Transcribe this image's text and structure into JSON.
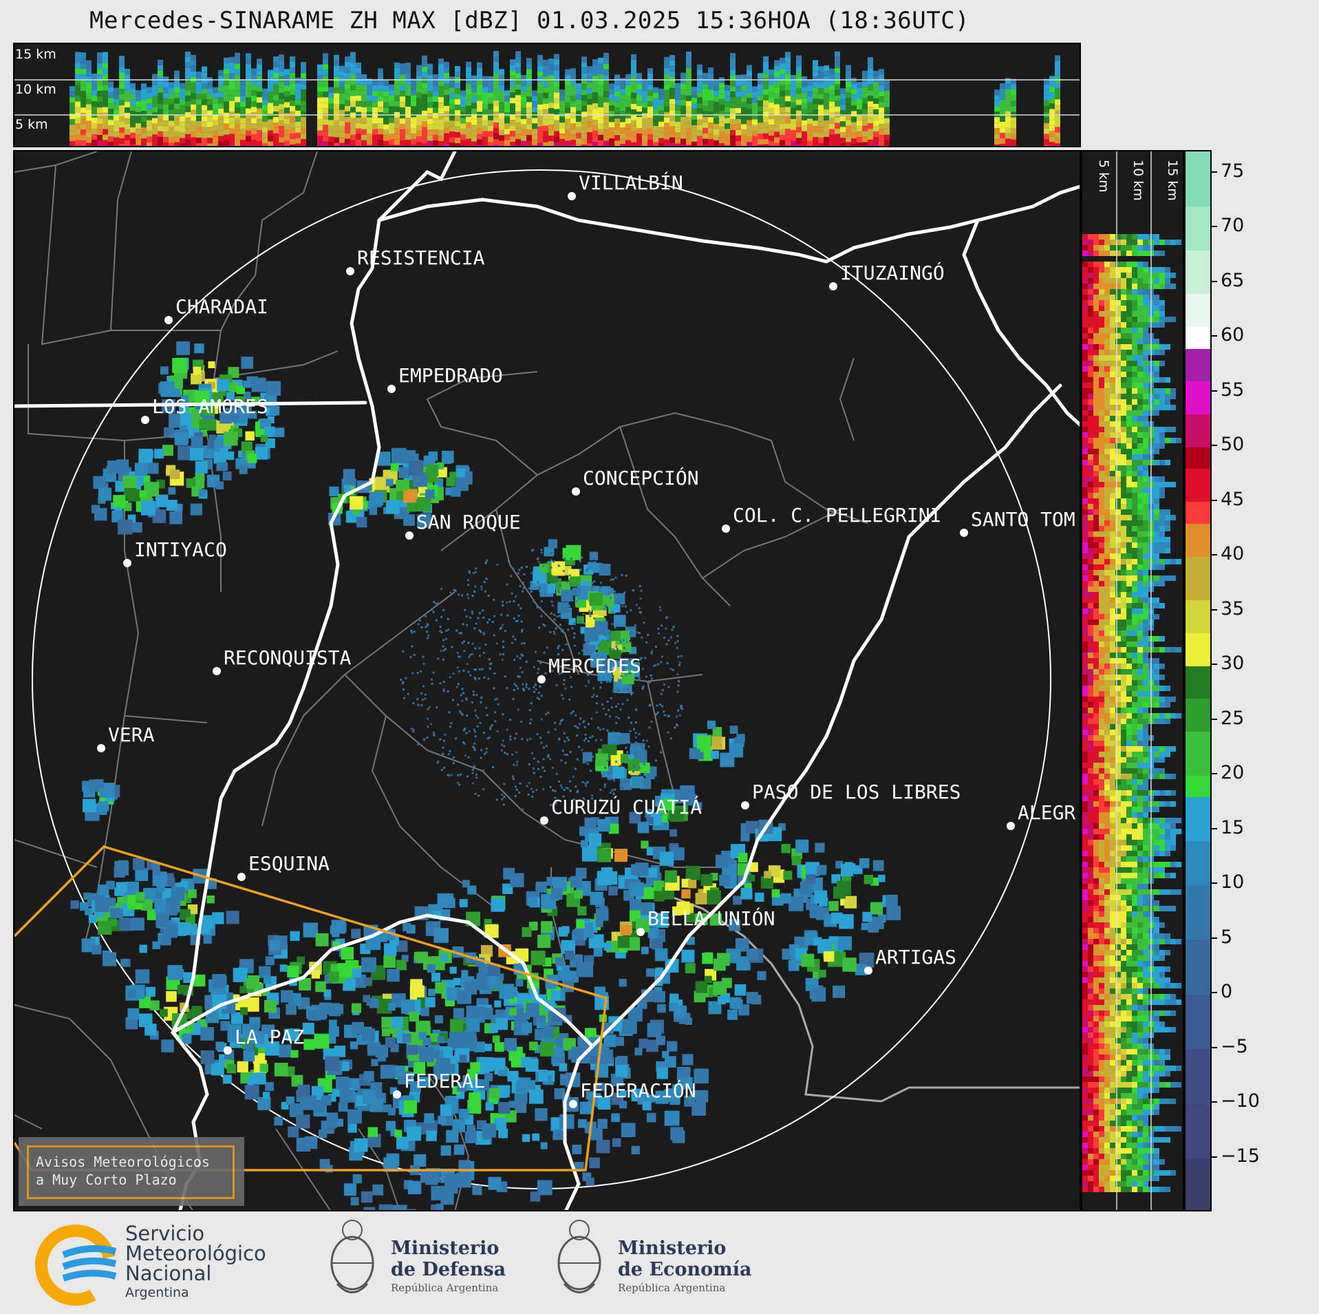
{
  "title": "Mercedes-SINARAME ZH MAX [dBZ] 01.03.2025 15:36HOA (18:36UTC)",
  "top_panel": {
    "altitude_labels": [
      "15 km",
      "10 km",
      "5 km"
    ]
  },
  "side_panel": {
    "altitude_labels": [
      "5 km",
      "10 km",
      "15 km"
    ]
  },
  "colorbar": {
    "ticks": [
      75,
      70,
      65,
      60,
      55,
      50,
      45,
      40,
      35,
      30,
      25,
      20,
      15,
      10,
      5,
      0,
      -5,
      -10,
      -15
    ],
    "tick_labels": [
      "75",
      "70",
      "65",
      "60",
      "55",
      "50",
      "45",
      "40",
      "35",
      "30",
      "25",
      "20",
      "15",
      "10",
      "5",
      "0",
      "−5",
      "−10",
      "−15"
    ],
    "min": -20,
    "max": 77,
    "color_stops": [
      {
        "from": -20,
        "to": -15,
        "color": "#3d3f6b"
      },
      {
        "from": -15,
        "to": -10,
        "color": "#41477a"
      },
      {
        "from": -10,
        "to": -5,
        "color": "#3f4f86"
      },
      {
        "from": -5,
        "to": 0,
        "color": "#3b5b93"
      },
      {
        "from": 0,
        "to": 5,
        "color": "#386a9e"
      },
      {
        "from": 5,
        "to": 10,
        "color": "#3479ab"
      },
      {
        "from": 10,
        "to": 14,
        "color": "#2f88bb"
      },
      {
        "from": 14,
        "to": 18,
        "color": "#2aa3d4"
      },
      {
        "from": 18,
        "to": 20,
        "color": "#36d836"
      },
      {
        "from": 20,
        "to": 24,
        "color": "#3cc03c"
      },
      {
        "from": 24,
        "to": 27,
        "color": "#2f9e2f"
      },
      {
        "from": 27,
        "to": 30,
        "color": "#237d23"
      },
      {
        "from": 30,
        "to": 33,
        "color": "#eeee3a"
      },
      {
        "from": 33,
        "to": 36,
        "color": "#d3d33a"
      },
      {
        "from": 36,
        "to": 40,
        "color": "#c4b038"
      },
      {
        "from": 40,
        "to": 43,
        "color": "#e0902a"
      },
      {
        "from": 43,
        "to": 45,
        "color": "#ff3a3a"
      },
      {
        "from": 45,
        "to": 48,
        "color": "#e0102a"
      },
      {
        "from": 48,
        "to": 50,
        "color": "#b00018"
      },
      {
        "from": 50,
        "to": 53,
        "color": "#c8106a"
      },
      {
        "from": 53,
        "to": 56,
        "color": "#e010c8"
      },
      {
        "from": 56,
        "to": 59,
        "color": "#a020a8"
      },
      {
        "from": 59,
        "to": 61,
        "color": "#ffffff"
      },
      {
        "from": 61,
        "to": 64,
        "color": "#e8f8ee"
      },
      {
        "from": 64,
        "to": 68,
        "color": "#c8efd8"
      },
      {
        "from": 68,
        "to": 72,
        "color": "#a4e6c6"
      },
      {
        "from": 72,
        "to": 77,
        "color": "#82dcb8"
      }
    ]
  },
  "map": {
    "center_city": "MERCEDES",
    "cities": [
      {
        "name": "VILLALBÍN"
      },
      {
        "name": "RESISTENCIA"
      },
      {
        "name": "CHARADAI"
      },
      {
        "name": "ITUZAINGÓ"
      },
      {
        "name": "EMPEDRADO"
      },
      {
        "name": "LOS AMORES"
      },
      {
        "name": "CONCEPCIÓN"
      },
      {
        "name": "COL. C. PELLEGRINI"
      },
      {
        "name": "SANTO TOM"
      },
      {
        "name": "SAN ROQUE"
      },
      {
        "name": "INTIYACO"
      },
      {
        "name": "MERCEDES"
      },
      {
        "name": "RECONQUISTA"
      },
      {
        "name": "VERA"
      },
      {
        "name": "CURUZÚ CUATIÁ"
      },
      {
        "name": "PASO DE LOS LIBRES"
      },
      {
        "name": "ALEGR"
      },
      {
        "name": "ESQUINA"
      },
      {
        "name": "BELLA UNIÓN"
      },
      {
        "name": "ARTIGAS"
      },
      {
        "name": "LA PAZ"
      },
      {
        "name": "FEDERAL"
      },
      {
        "name": "FEDERACIÓN"
      }
    ],
    "warning_box": [
      "Avisos Meteorológicos",
      "a Muy Corto Plazo"
    ]
  },
  "footer": {
    "smn": [
      "Servicio",
      "Meteorológico",
      "Nacional",
      "Argentina"
    ],
    "defensa": [
      "Ministerio",
      "de Defensa",
      "República Argentina"
    ],
    "economia": [
      "Ministerio",
      "de Economía",
      "República Argentina"
    ]
  },
  "colors": {
    "panel_bg": "#1b1b1b",
    "border_state": "#777777",
    "river": "#ffffff",
    "warning": "#f0a020"
  }
}
